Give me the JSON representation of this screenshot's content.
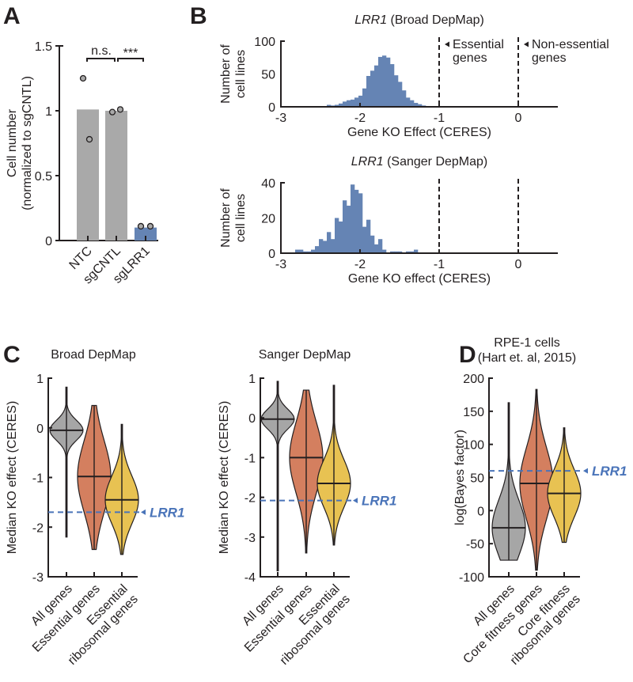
{
  "panels": {
    "A": "A",
    "B": "B",
    "C": "C",
    "D": "D"
  },
  "colors": {
    "gray": "#a9a9a9",
    "blue": "#6584b4",
    "orange": "#d47f5f",
    "yellow": "#e8c252",
    "violin_gray": "#a6a6a6",
    "lrr1_line": "#4a74b9",
    "axis": "#231f20"
  },
  "chart_data": [
    {
      "id": "A",
      "type": "bar",
      "title": "",
      "ylabel_line1": "Cell number",
      "ylabel_line2": "(normalized to sgCNTL)",
      "categories": [
        "NTC",
        "sgCNTL",
        "sgLRR1"
      ],
      "values": [
        1.01,
        1.0,
        0.1
      ],
      "points": [
        [
          1.25,
          0.78
        ],
        [
          0.99,
          1.01
        ],
        [
          0.11,
          0.11
        ]
      ],
      "ylim": [
        0,
        1.5
      ],
      "yticks": [
        "0",
        "0.5",
        "1",
        "1.5"
      ],
      "significance": [
        {
          "pair": [
            "NTC",
            "sgCNTL"
          ],
          "label": "n.s."
        },
        {
          "pair": [
            "sgCNTL",
            "sgLRR1"
          ],
          "label": "***"
        }
      ]
    },
    {
      "id": "B1",
      "type": "bar",
      "title_gene": "LRR1",
      "title_rest": " (Broad DepMap)",
      "xlabel": "Gene KO Effect (CERES)",
      "ylabel_line1": "Number of",
      "ylabel_line2": "cell lines",
      "xlim": [
        -3,
        0.5
      ],
      "ylim": [
        0,
        100
      ],
      "xticks": [
        "-3",
        "-2",
        "-1",
        "0"
      ],
      "yticks": [
        "0",
        "50",
        "100"
      ],
      "bin_start": -2.42,
      "bin_width": 0.05,
      "counts": [
        3,
        2,
        3,
        5,
        8,
        10,
        11,
        14,
        17,
        28,
        47,
        55,
        63,
        76,
        78,
        75,
        65,
        48,
        38,
        25,
        14,
        10,
        6,
        4,
        2,
        1
      ],
      "reference_lines": [
        {
          "x": -1,
          "label_line1": "Essential",
          "label_line2": "genes"
        },
        {
          "x": 0,
          "label_line1": "Non-essential",
          "label_line2": "genes"
        }
      ]
    },
    {
      "id": "B2",
      "type": "bar",
      "title_gene": "LRR1",
      "title_rest": " (Sanger DepMap)",
      "xlabel": "Gene KO effect (CERES)",
      "ylabel_line1": "Number of",
      "ylabel_line2": "cell lines",
      "xlim": [
        -3,
        0.5
      ],
      "ylim": [
        0,
        40
      ],
      "xticks": [
        "-3",
        "-2",
        "-1",
        "0"
      ],
      "yticks": [
        "0",
        "20",
        "40"
      ],
      "bin_start": -2.82,
      "bin_width": 0.05,
      "counts": [
        2,
        2,
        1,
        1,
        2,
        4,
        8,
        7,
        12,
        8,
        20,
        18,
        30,
        27,
        39,
        36,
        34,
        15,
        19,
        10,
        5,
        8,
        2,
        0,
        1,
        1,
        1,
        0,
        1,
        1,
        2
      ],
      "reference_lines": [
        {
          "x": -1
        },
        {
          "x": 0
        }
      ]
    },
    {
      "id": "C1",
      "type": "violin",
      "title": "Broad DepMap",
      "ylabel": "Median KO effect (CERES)",
      "ylim": [
        -3,
        1
      ],
      "yticks": [
        "-3",
        "-2",
        "-1",
        "0",
        "1"
      ],
      "categories": [
        "All genes",
        "Essential genes",
        "Essential|ribosomal genes"
      ],
      "medians": [
        -0.05,
        -0.98,
        -1.45
      ],
      "ranges": [
        [
          -2.2,
          0.82
        ],
        [
          -2.45,
          0.45
        ],
        [
          -2.55,
          0.07
        ]
      ],
      "reference": {
        "value": -1.7,
        "label": "LRR1"
      }
    },
    {
      "id": "C2",
      "type": "violin",
      "title": "Sanger DepMap",
      "ylabel": "Median KO effect (CERES)",
      "ylim": [
        -4,
        1
      ],
      "yticks": [
        "-4",
        "-3",
        "-2",
        "-1",
        "0",
        "1"
      ],
      "categories": [
        "All genes",
        "Essential genes",
        "Essential|ribosomal genes"
      ],
      "medians": [
        -0.03,
        -1.0,
        -1.65
      ],
      "ranges": [
        [
          -3.85,
          0.92
        ],
        [
          -3.4,
          0.7
        ],
        [
          -3.2,
          0.82
        ]
      ],
      "reference": {
        "value": -2.08,
        "label": "LRR1"
      }
    },
    {
      "id": "D",
      "type": "violin",
      "title_line1": "RPE-1 cells",
      "title_line2": "(Hart et. al, 2015)",
      "ylabel": "log(Bayes factor)",
      "ylim": [
        -100,
        200
      ],
      "yticks": [
        "-100",
        "-50",
        "0",
        "50",
        "100",
        "150",
        "200"
      ],
      "categories": [
        "All genes",
        "Core fitness genes",
        "Core fitness|ribosomal genes"
      ],
      "medians": [
        -26,
        41,
        26
      ],
      "ranges": [
        [
          -75,
          163
        ],
        [
          -90,
          183
        ],
        [
          -48,
          125
        ]
      ],
      "reference": {
        "value": 60,
        "label": "LRR1"
      }
    }
  ]
}
